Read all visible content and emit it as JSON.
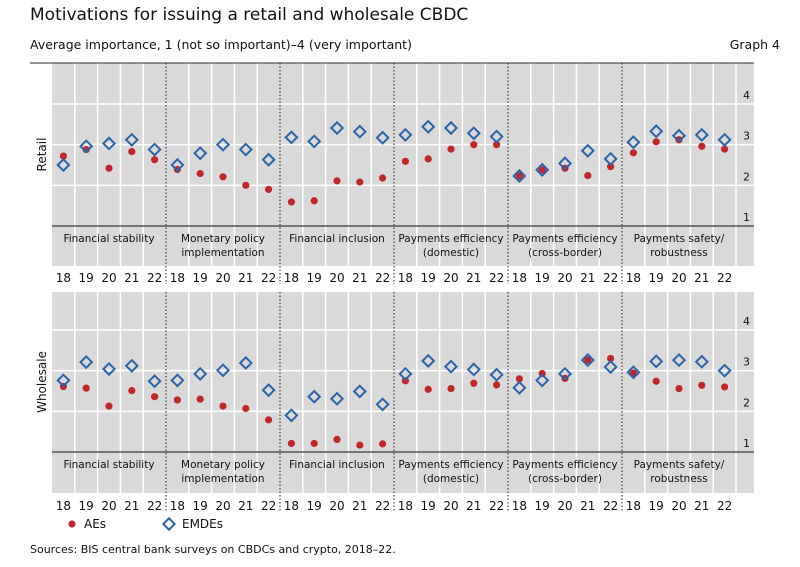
{
  "header": {
    "title": "Motivations for issuing a retail and wholesale CBDC",
    "subtitle": "Average importance, 1 (not so important)–4 (very important)",
    "graph_number": "Graph 4"
  },
  "footer": {
    "source": "Sources: BIS central bank surveys on CBDCs and crypto, 2018–22."
  },
  "colors": {
    "AEs": "#c0272d",
    "EMDEs": "#2e63a8",
    "background": "#d9d9d9"
  },
  "chart_data": [
    {
      "type": "scatter",
      "panel_label": "Retail",
      "ylim": [
        1,
        4
      ],
      "yticks": [
        "1",
        "2",
        "3",
        "4"
      ],
      "grid": true,
      "legend": "bottom-left",
      "groups": [
        {
          "label": [
            "Financial stability"
          ]
        },
        {
          "label": [
            "Monetary policy",
            "implementation"
          ]
        },
        {
          "label": [
            "Financial inclusion"
          ]
        },
        {
          "label": [
            "Payments efficiency",
            "(domestic)"
          ]
        },
        {
          "label": [
            "Payments efficiency",
            "(cross-border)"
          ]
        },
        {
          "label": [
            "Payments safety/",
            "robustness"
          ]
        }
      ],
      "years": [
        "18",
        "19",
        "20",
        "21",
        "22"
      ],
      "series": [
        {
          "name": "AEs",
          "marker": "circle",
          "values": [
            [
              2.72,
              2.88,
              2.42,
              2.83,
              2.63
            ],
            [
              2.39,
              2.29,
              2.21,
              2.0,
              1.9
            ],
            [
              1.59,
              1.62,
              2.11,
              2.08,
              2.18
            ],
            [
              2.59,
              2.65,
              2.89,
              3.0,
              3.0
            ],
            [
              2.23,
              2.38,
              2.42,
              2.24,
              2.46
            ],
            [
              2.8,
              3.07,
              3.12,
              2.96,
              2.89
            ]
          ]
        },
        {
          "name": "EMDEs",
          "marker": "diamond",
          "values": [
            [
              2.5,
              2.96,
              3.03,
              3.12,
              2.88
            ],
            [
              2.5,
              2.79,
              3.0,
              2.88,
              2.63
            ],
            [
              3.18,
              3.08,
              3.41,
              3.32,
              3.17
            ],
            [
              3.24,
              3.44,
              3.41,
              3.28,
              3.2
            ],
            [
              2.23,
              2.38,
              2.54,
              2.85,
              2.65
            ],
            [
              3.06,
              3.33,
              3.22,
              3.24,
              3.12
            ]
          ]
        }
      ]
    },
    {
      "type": "scatter",
      "panel_label": "Wholesale",
      "ylim": [
        1,
        4
      ],
      "yticks": [
        "1",
        "2",
        "3",
        "4"
      ],
      "grid": true,
      "legend": "bottom-left",
      "groups": [
        {
          "label": [
            "Financial stability"
          ]
        },
        {
          "label": [
            "Monetary policy",
            "implementation"
          ]
        },
        {
          "label": [
            "Financial inclusion"
          ]
        },
        {
          "label": [
            "Payments efficiency",
            "(domestic)"
          ]
        },
        {
          "label": [
            "Payments efficiency",
            "(cross-border)"
          ]
        },
        {
          "label": [
            "Payments safety/",
            "robustness"
          ]
        }
      ],
      "years": [
        "18",
        "19",
        "20",
        "21",
        "22"
      ],
      "series": [
        {
          "name": "AEs",
          "marker": "circle",
          "values": [
            [
              2.61,
              2.57,
              2.13,
              2.51,
              2.36
            ],
            [
              2.28,
              2.3,
              2.13,
              2.07,
              1.79
            ],
            [
              1.21,
              1.21,
              1.31,
              1.17,
              1.2
            ],
            [
              2.75,
              2.54,
              2.56,
              2.69,
              2.65
            ],
            [
              2.8,
              2.93,
              2.81,
              3.26,
              3.3
            ],
            [
              2.94,
              2.74,
              2.56,
              2.64,
              2.6
            ]
          ]
        },
        {
          "name": "EMDEs",
          "marker": "diamond",
          "values": [
            [
              2.76,
              3.21,
              3.04,
              3.12,
              2.74
            ],
            [
              2.76,
              2.92,
              3.01,
              3.19,
              2.52
            ],
            [
              1.9,
              2.36,
              2.31,
              2.49,
              2.17
            ],
            [
              2.92,
              3.24,
              3.1,
              3.03,
              2.9
            ],
            [
              2.58,
              2.76,
              2.92,
              3.26,
              3.09
            ],
            [
              2.96,
              3.23,
              3.26,
              3.22,
              3.0
            ]
          ]
        }
      ]
    }
  ]
}
